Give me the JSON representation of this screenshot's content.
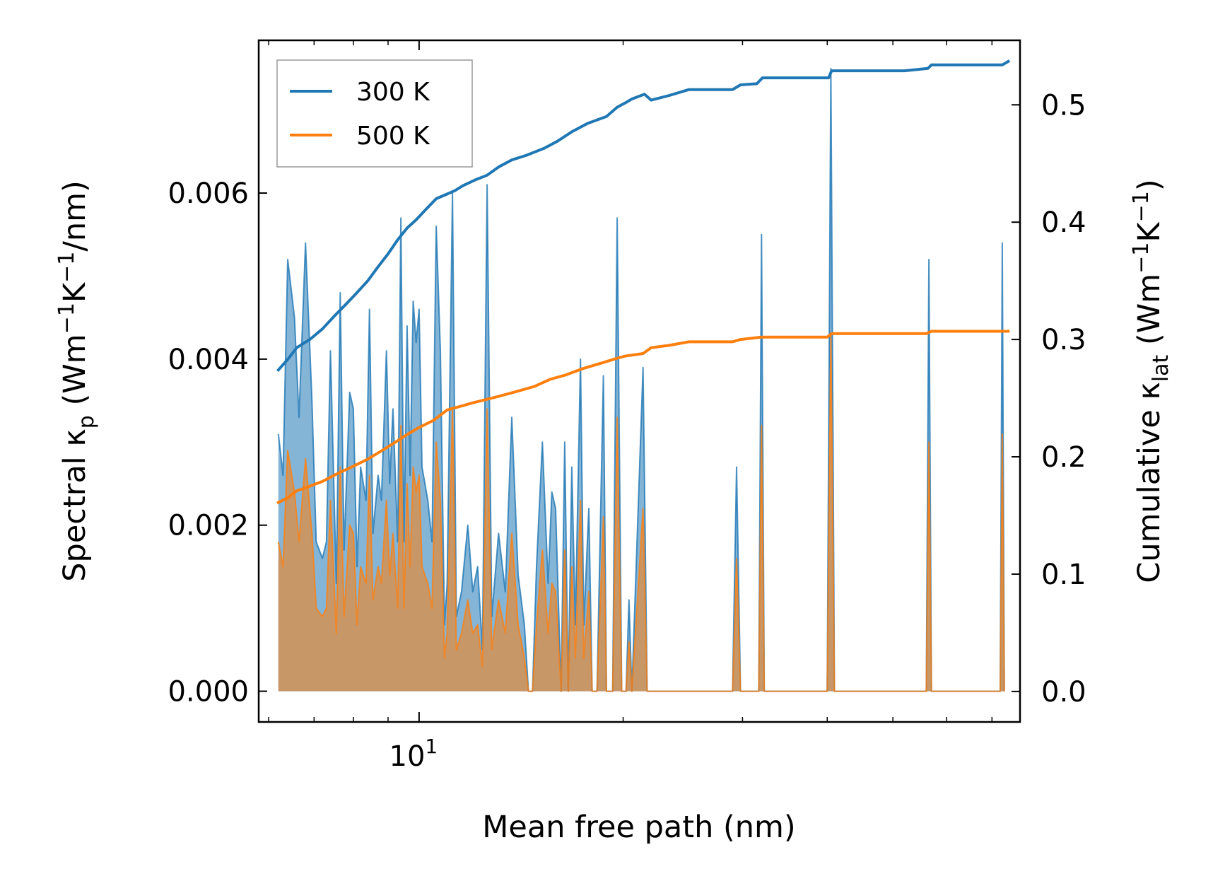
{
  "chart_data": {
    "type": "area",
    "xscale": "log",
    "xlabel": "Mean free path (nm)",
    "ylabel_left": {
      "base": "Spectral κ",
      "sub": "p",
      "units": "(Wm",
      "sup1": "−1",
      "k": "K",
      "sup2": "−1",
      "tail": "/nm)"
    },
    "ylabel_right": {
      "base": "Cumulative κ",
      "sub": "lat",
      "units": "(Wm",
      "sup1": "−1",
      "k": "K",
      "sup2": "−1",
      "tail": ")"
    },
    "xlim": [
      5.8,
      77
    ],
    "ylim_left": [
      -0.00037,
      0.00784
    ],
    "ylim_right": [
      -0.026,
      0.555
    ],
    "xticks_major": [
      {
        "value": 10,
        "label": "10",
        "sup": "1"
      }
    ],
    "xticks_minor": [
      6,
      7,
      8,
      9,
      20,
      30,
      40,
      50,
      60,
      70
    ],
    "yticks_left": [
      {
        "value": 0.0,
        "label": "0.000"
      },
      {
        "value": 0.002,
        "label": "0.002"
      },
      {
        "value": 0.004,
        "label": "0.004"
      },
      {
        "value": 0.006,
        "label": "0.006"
      }
    ],
    "yticks_right": [
      {
        "value": 0.0,
        "label": "0.0"
      },
      {
        "value": 0.1,
        "label": "0.1"
      },
      {
        "value": 0.2,
        "label": "0.2"
      },
      {
        "value": 0.3,
        "label": "0.3"
      },
      {
        "value": 0.4,
        "label": "0.4"
      },
      {
        "value": 0.5,
        "label": "0.5"
      }
    ],
    "legend": {
      "position": "top-left",
      "entries": [
        {
          "label": "300 K",
          "color": "#1f77b4"
        },
        {
          "label": "500 K",
          "color": "#ff7f0e"
        }
      ]
    },
    "series": [
      {
        "name": "300 K",
        "color": "#1f77b4",
        "spectral": [
          [
            6.2,
            0.0031
          ],
          [
            6.3,
            0.0026
          ],
          [
            6.4,
            0.0052
          ],
          [
            6.55,
            0.0045
          ],
          [
            6.65,
            0.0033
          ],
          [
            6.8,
            0.0054
          ],
          [
            6.95,
            0.0035
          ],
          [
            7.05,
            0.0018
          ],
          [
            7.2,
            0.0016
          ],
          [
            7.3,
            0.0018
          ],
          [
            7.4,
            0.0041
          ],
          [
            7.55,
            0.0013
          ],
          [
            7.65,
            0.0048
          ],
          [
            7.75,
            0.0017
          ],
          [
            7.9,
            0.0036
          ],
          [
            8.0,
            0.0034
          ],
          [
            8.1,
            0.0015
          ],
          [
            8.2,
            0.0027
          ],
          [
            8.35,
            0.0023
          ],
          [
            8.45,
            0.0046
          ],
          [
            8.55,
            0.0019
          ],
          [
            8.7,
            0.0026
          ],
          [
            8.8,
            0.0023
          ],
          [
            8.95,
            0.0041
          ],
          [
            9.05,
            0.0025
          ],
          [
            9.15,
            0.0034
          ],
          [
            9.3,
            0.0018
          ],
          [
            9.4,
            0.0057
          ],
          [
            9.5,
            0.0018
          ],
          [
            9.6,
            0.0044
          ],
          [
            9.7,
            0.0026
          ],
          [
            9.8,
            0.0047
          ],
          [
            9.9,
            0.0042
          ],
          [
            10.0,
            0.0046
          ],
          [
            10.1,
            0.0027
          ],
          [
            10.3,
            0.0023
          ],
          [
            10.45,
            0.0018
          ],
          [
            10.6,
            0.0056
          ],
          [
            10.75,
            0.0041
          ],
          [
            10.9,
            0.0008
          ],
          [
            11.0,
            0.0013
          ],
          [
            11.2,
            0.006
          ],
          [
            11.35,
            0.0009
          ],
          [
            11.55,
            0.0012
          ],
          [
            11.8,
            0.002
          ],
          [
            12.0,
            0.0012
          ],
          [
            12.2,
            0.0015
          ],
          [
            12.4,
            0.0005
          ],
          [
            12.6,
            0.0061
          ],
          [
            12.8,
            0.0009
          ],
          [
            13.1,
            0.0019
          ],
          [
            13.4,
            0.0012
          ],
          [
            13.7,
            0.0033
          ],
          [
            14.0,
            0.0014
          ],
          [
            14.3,
            0.0008
          ],
          [
            14.5,
            0.0
          ],
          [
            14.7,
            0.0
          ],
          [
            14.9,
            0.0015
          ],
          [
            15.2,
            0.003
          ],
          [
            15.5,
            0.0013
          ],
          [
            15.7,
            0.0024
          ],
          [
            15.9,
            0.0022
          ],
          [
            16.2,
            0.0
          ],
          [
            16.4,
            0.003
          ],
          [
            16.6,
            0.0
          ],
          [
            16.8,
            0.0027
          ],
          [
            17.0,
            0.0008
          ],
          [
            17.3,
            0.004
          ],
          [
            17.5,
            0.0008
          ],
          [
            17.8,
            0.0022
          ],
          [
            18.0,
            0.0
          ],
          [
            18.3,
            0.0
          ],
          [
            18.7,
            0.0038
          ],
          [
            18.9,
            0.0
          ],
          [
            19.3,
            0.0
          ],
          [
            19.6,
            0.0057
          ],
          [
            19.9,
            0.0
          ],
          [
            20.2,
            0.0
          ],
          [
            20.4,
            0.0011
          ],
          [
            20.6,
            0.0
          ],
          [
            21.4,
            0.0039
          ],
          [
            21.7,
            0.0
          ],
          [
            29.0,
            0.0
          ],
          [
            29.4,
            0.0027
          ],
          [
            29.8,
            0.0
          ],
          [
            31.7,
            0.0
          ],
          [
            32.0,
            0.0055
          ],
          [
            32.3,
            0.0
          ],
          [
            40.0,
            0.0
          ],
          [
            40.5,
            0.0075
          ],
          [
            41.0,
            0.0
          ],
          [
            56.0,
            0.0
          ],
          [
            56.5,
            0.0052
          ],
          [
            57.0,
            0.0
          ],
          [
            72.0,
            0.0
          ],
          [
            72.5,
            0.0054
          ],
          [
            73.0,
            0.0
          ]
        ],
        "cumulative": [
          [
            6.2,
            0.274
          ],
          [
            6.4,
            0.283
          ],
          [
            6.6,
            0.293
          ],
          [
            6.9,
            0.3
          ],
          [
            7.2,
            0.309
          ],
          [
            7.5,
            0.32
          ],
          [
            7.8,
            0.33
          ],
          [
            8.1,
            0.34
          ],
          [
            8.4,
            0.35
          ],
          [
            8.7,
            0.362
          ],
          [
            9.0,
            0.373
          ],
          [
            9.3,
            0.385
          ],
          [
            9.6,
            0.395
          ],
          [
            9.9,
            0.402
          ],
          [
            10.2,
            0.41
          ],
          [
            10.6,
            0.42
          ],
          [
            11.0,
            0.424
          ],
          [
            11.3,
            0.427
          ],
          [
            11.6,
            0.431
          ],
          [
            12.1,
            0.436
          ],
          [
            12.6,
            0.44
          ],
          [
            13.1,
            0.447
          ],
          [
            13.7,
            0.453
          ],
          [
            14.4,
            0.457
          ],
          [
            15.3,
            0.463
          ],
          [
            16.0,
            0.469
          ],
          [
            16.8,
            0.477
          ],
          [
            17.7,
            0.484
          ],
          [
            18.9,
            0.49
          ],
          [
            19.6,
            0.498
          ],
          [
            20.2,
            0.502
          ],
          [
            20.6,
            0.505
          ],
          [
            21.5,
            0.509
          ],
          [
            22.0,
            0.504
          ],
          [
            23.4,
            0.508
          ],
          [
            25.0,
            0.513
          ],
          [
            26.5,
            0.513
          ],
          [
            29.0,
            0.513
          ],
          [
            29.8,
            0.517
          ],
          [
            31.5,
            0.518
          ],
          [
            32.1,
            0.523
          ],
          [
            38.0,
            0.523
          ],
          [
            40.2,
            0.523
          ],
          [
            40.6,
            0.529
          ],
          [
            52.0,
            0.529
          ],
          [
            56.3,
            0.531
          ],
          [
            57.0,
            0.534
          ],
          [
            72.5,
            0.534
          ],
          [
            74.0,
            0.537
          ]
        ]
      },
      {
        "name": "500 K",
        "color": "#ff7f0e",
        "spectral": [
          [
            6.2,
            0.0018
          ],
          [
            6.3,
            0.0015
          ],
          [
            6.4,
            0.0029
          ],
          [
            6.55,
            0.0024
          ],
          [
            6.65,
            0.0018
          ],
          [
            6.8,
            0.0028
          ],
          [
            6.95,
            0.0019
          ],
          [
            7.05,
            0.001
          ],
          [
            7.2,
            0.0009
          ],
          [
            7.3,
            0.001
          ],
          [
            7.4,
            0.0023
          ],
          [
            7.55,
            0.0007
          ],
          [
            7.65,
            0.0027
          ],
          [
            7.75,
            0.0009
          ],
          [
            7.9,
            0.002
          ],
          [
            8.0,
            0.0019
          ],
          [
            8.1,
            0.0008
          ],
          [
            8.2,
            0.0015
          ],
          [
            8.35,
            0.0013
          ],
          [
            8.45,
            0.0026
          ],
          [
            8.55,
            0.0011
          ],
          [
            8.7,
            0.0015
          ],
          [
            8.8,
            0.0013
          ],
          [
            8.95,
            0.0023
          ],
          [
            9.05,
            0.0014
          ],
          [
            9.15,
            0.0019
          ],
          [
            9.3,
            0.001
          ],
          [
            9.4,
            0.0032
          ],
          [
            9.5,
            0.001
          ],
          [
            9.6,
            0.0025
          ],
          [
            9.7,
            0.0015
          ],
          [
            9.8,
            0.0027
          ],
          [
            9.9,
            0.0024
          ],
          [
            10.0,
            0.0026
          ],
          [
            10.1,
            0.0015
          ],
          [
            10.3,
            0.0013
          ],
          [
            10.45,
            0.001
          ],
          [
            10.6,
            0.003
          ],
          [
            10.75,
            0.0023
          ],
          [
            10.9,
            0.0004
          ],
          [
            11.0,
            0.0007
          ],
          [
            11.2,
            0.0034
          ],
          [
            11.35,
            0.0005
          ],
          [
            11.55,
            0.0007
          ],
          [
            11.8,
            0.0011
          ],
          [
            12.0,
            0.0007
          ],
          [
            12.2,
            0.0008
          ],
          [
            12.4,
            0.0003
          ],
          [
            12.6,
            0.0034
          ],
          [
            12.8,
            0.0005
          ],
          [
            13.1,
            0.0011
          ],
          [
            13.4,
            0.0007
          ],
          [
            13.7,
            0.0019
          ],
          [
            14.0,
            0.0008
          ],
          [
            14.3,
            0.0004
          ],
          [
            14.5,
            0.0
          ],
          [
            14.7,
            0.0
          ],
          [
            14.9,
            0.0008
          ],
          [
            15.2,
            0.0017
          ],
          [
            15.5,
            0.0007
          ],
          [
            15.7,
            0.0013
          ],
          [
            15.9,
            0.0012
          ],
          [
            16.2,
            0.0
          ],
          [
            16.4,
            0.0017
          ],
          [
            16.6,
            0.0
          ],
          [
            16.8,
            0.0015
          ],
          [
            17.0,
            0.0004
          ],
          [
            17.3,
            0.0023
          ],
          [
            17.5,
            0.0004
          ],
          [
            17.8,
            0.0012
          ],
          [
            18.0,
            0.0
          ],
          [
            18.3,
            0.0
          ],
          [
            18.7,
            0.0021
          ],
          [
            18.9,
            0.0
          ],
          [
            19.3,
            0.0
          ],
          [
            19.6,
            0.0033
          ],
          [
            19.9,
            0.0
          ],
          [
            20.2,
            0.0
          ],
          [
            20.4,
            0.0006
          ],
          [
            20.6,
            0.0
          ],
          [
            21.4,
            0.0022
          ],
          [
            21.7,
            0.0
          ],
          [
            29.0,
            0.0
          ],
          [
            29.4,
            0.0016
          ],
          [
            29.8,
            0.0
          ],
          [
            31.7,
            0.0
          ],
          [
            32.0,
            0.0032
          ],
          [
            32.3,
            0.0
          ],
          [
            40.0,
            0.0
          ],
          [
            40.5,
            0.0043
          ],
          [
            41.0,
            0.0
          ],
          [
            56.0,
            0.0
          ],
          [
            56.5,
            0.003
          ],
          [
            57.0,
            0.0
          ],
          [
            72.0,
            0.0
          ],
          [
            72.5,
            0.0031
          ],
          [
            73.0,
            0.0
          ]
        ],
        "cumulative": [
          [
            6.2,
            0.161
          ],
          [
            6.4,
            0.165
          ],
          [
            6.6,
            0.171
          ],
          [
            6.9,
            0.175
          ],
          [
            7.2,
            0.179
          ],
          [
            7.6,
            0.186
          ],
          [
            8.0,
            0.192
          ],
          [
            8.4,
            0.198
          ],
          [
            8.8,
            0.205
          ],
          [
            9.2,
            0.212
          ],
          [
            9.6,
            0.219
          ],
          [
            10.0,
            0.225
          ],
          [
            10.5,
            0.231
          ],
          [
            11.0,
            0.24
          ],
          [
            11.5,
            0.243
          ],
          [
            12.0,
            0.246
          ],
          [
            12.6,
            0.249
          ],
          [
            13.2,
            0.252
          ],
          [
            14.0,
            0.256
          ],
          [
            14.8,
            0.26
          ],
          [
            15.6,
            0.266
          ],
          [
            16.5,
            0.27
          ],
          [
            17.4,
            0.275
          ],
          [
            18.6,
            0.28
          ],
          [
            19.6,
            0.284
          ],
          [
            20.2,
            0.286
          ],
          [
            21.4,
            0.288
          ],
          [
            22.0,
            0.293
          ],
          [
            23.4,
            0.295
          ],
          [
            25.0,
            0.298
          ],
          [
            29.0,
            0.298
          ],
          [
            29.8,
            0.3
          ],
          [
            32.0,
            0.302
          ],
          [
            40.0,
            0.302
          ],
          [
            40.6,
            0.305
          ],
          [
            56.0,
            0.305
          ],
          [
            57.0,
            0.307
          ],
          [
            74.0,
            0.307
          ]
        ]
      }
    ]
  }
}
